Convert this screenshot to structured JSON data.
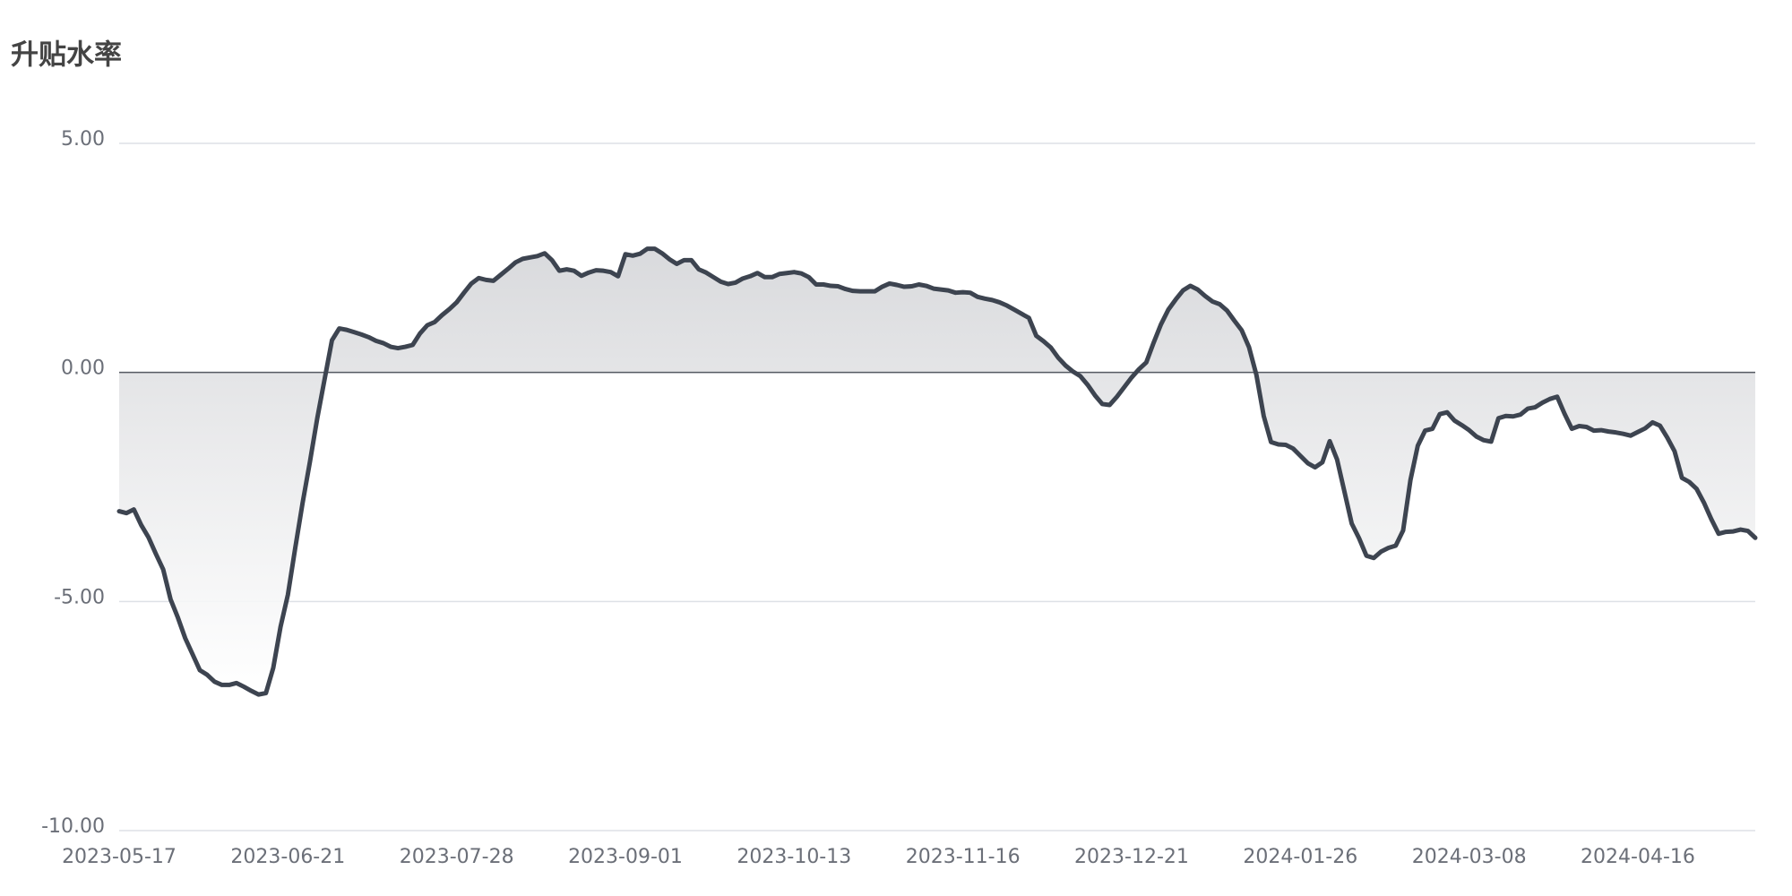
{
  "chart_data": {
    "type": "area",
    "title": "升贴水率",
    "categories": [
      "2023-05-17",
      null,
      null,
      null,
      null,
      null,
      null,
      null,
      null,
      null,
      null,
      null,
      null,
      null,
      null,
      null,
      null,
      null,
      null,
      null,
      null,
      null,
      null,
      "2023-06-21",
      null,
      null,
      null,
      null,
      null,
      null,
      null,
      null,
      null,
      null,
      null,
      null,
      null,
      null,
      null,
      null,
      null,
      null,
      null,
      null,
      null,
      null,
      "2023-07-28",
      null,
      null,
      null,
      null,
      null,
      null,
      null,
      null,
      null,
      null,
      null,
      null,
      null,
      null,
      null,
      null,
      null,
      null,
      null,
      null,
      null,
      null,
      "2023-09-01",
      null,
      null,
      null,
      null,
      null,
      null,
      null,
      null,
      null,
      null,
      null,
      null,
      null,
      null,
      null,
      null,
      null,
      null,
      null,
      null,
      null,
      null,
      "2023-10-13",
      null,
      null,
      null,
      null,
      null,
      null,
      null,
      null,
      null,
      null,
      null,
      null,
      null,
      null,
      null,
      null,
      null,
      null,
      null,
      null,
      null,
      null,
      "2023-11-16",
      null,
      null,
      null,
      null,
      null,
      null,
      null,
      null,
      null,
      null,
      null,
      null,
      null,
      null,
      null,
      null,
      null,
      null,
      null,
      null,
      null,
      null,
      "2023-12-21",
      null,
      null,
      null,
      null,
      null,
      null,
      null,
      null,
      null,
      null,
      null,
      null,
      null,
      null,
      null,
      null,
      null,
      null,
      null,
      null,
      null,
      null,
      "2024-01-26",
      null,
      null,
      null,
      null,
      null,
      null,
      null,
      null,
      null,
      null,
      null,
      null,
      null,
      null,
      null,
      null,
      null,
      null,
      null,
      null,
      null,
      null,
      "2024-03-08",
      null,
      null,
      null,
      null,
      null,
      null,
      null,
      null,
      null,
      null,
      null,
      null,
      null,
      null,
      null,
      null,
      null,
      null,
      null,
      null,
      null,
      null,
      "2024-04-16",
      null,
      null,
      null,
      null,
      null,
      null,
      null,
      null,
      null,
      null,
      null,
      null,
      null,
      null,
      null,
      null
    ],
    "values": [
      -3.03,
      -3.07,
      -2.99,
      -3.33,
      -3.6,
      -3.96,
      -4.3,
      -4.95,
      -5.35,
      -5.8,
      -6.15,
      -6.5,
      -6.6,
      -6.75,
      -6.82,
      -6.82,
      -6.78,
      -6.86,
      -6.95,
      -7.03,
      -7.0,
      -6.45,
      -5.55,
      -4.85,
      -3.83,
      -2.85,
      -1.95,
      -1.0,
      -0.15,
      0.7,
      0.96,
      0.93,
      0.88,
      0.83,
      0.77,
      0.69,
      0.64,
      0.56,
      0.53,
      0.56,
      0.6,
      0.85,
      1.03,
      1.1,
      1.25,
      1.38,
      1.53,
      1.74,
      1.94,
      2.06,
      2.02,
      2.0,
      2.13,
      2.26,
      2.4,
      2.48,
      2.51,
      2.54,
      2.6,
      2.45,
      2.22,
      2.25,
      2.22,
      2.11,
      2.18,
      2.23,
      2.22,
      2.19,
      2.1,
      2.58,
      2.55,
      2.59,
      2.7,
      2.7,
      2.6,
      2.47,
      2.37,
      2.45,
      2.45,
      2.25,
      2.18,
      2.08,
      1.98,
      1.93,
      1.96,
      2.05,
      2.1,
      2.17,
      2.08,
      2.08,
      2.15,
      2.17,
      2.19,
      2.16,
      2.08,
      1.92,
      1.92,
      1.89,
      1.88,
      1.82,
      1.78,
      1.77,
      1.77,
      1.77,
      1.87,
      1.94,
      1.91,
      1.87,
      1.88,
      1.92,
      1.89,
      1.83,
      1.81,
      1.79,
      1.74,
      1.75,
      1.74,
      1.65,
      1.61,
      1.58,
      1.53,
      1.46,
      1.37,
      1.28,
      1.19,
      0.8,
      0.68,
      0.54,
      0.32,
      0.15,
      0.02,
      -0.08,
      -0.27,
      -0.5,
      -0.69,
      -0.71,
      -0.53,
      -0.32,
      -0.11,
      0.07,
      0.22,
      0.65,
      1.05,
      1.37,
      1.59,
      1.79,
      1.89,
      1.81,
      1.67,
      1.55,
      1.49,
      1.35,
      1.13,
      0.92,
      0.55,
      -0.05,
      -0.95,
      -1.52,
      -1.57,
      -1.58,
      -1.66,
      -1.82,
      -1.98,
      -2.07,
      -1.96,
      -1.5,
      -1.9,
      -2.6,
      -3.3,
      -3.62,
      -4.0,
      -4.05,
      -3.91,
      -3.83,
      -3.78,
      -3.45,
      -2.35,
      -1.6,
      -1.27,
      -1.23,
      -0.91,
      -0.87,
      -1.05,
      -1.15,
      -1.26,
      -1.4,
      -1.48,
      -1.51,
      -1.0,
      -0.95,
      -0.96,
      -0.92,
      -0.79,
      -0.76,
      -0.66,
      -0.58,
      -0.53,
      -0.9,
      -1.23,
      -1.17,
      -1.19,
      -1.27,
      -1.26,
      -1.29,
      -1.31,
      -1.34,
      -1.38,
      -1.3,
      -1.22,
      -1.09,
      -1.16,
      -1.42,
      -1.72,
      -2.3,
      -2.39,
      -2.54,
      -2.84,
      -3.2,
      -3.52,
      -3.48,
      -3.47,
      -3.43,
      -3.46,
      -3.61
    ],
    "color": "#3d4450",
    "ylim": [
      -10,
      5
    ],
    "yticks": [
      {
        "value": -10,
        "label": "-10.00"
      },
      {
        "value": -5,
        "label": "-5.00"
      },
      {
        "value": 0,
        "label": "0.00"
      },
      {
        "value": 5,
        "label": "5.00"
      }
    ],
    "grid": true
  }
}
